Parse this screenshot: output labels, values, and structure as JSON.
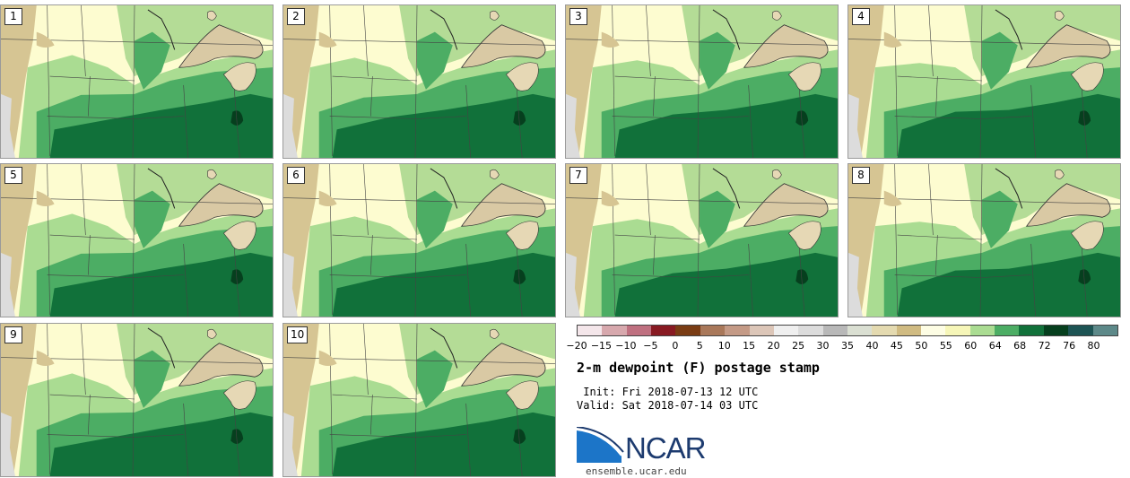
{
  "panels": [
    {
      "label": "1"
    },
    {
      "label": "2"
    },
    {
      "label": "3"
    },
    {
      "label": "4"
    },
    {
      "label": "5"
    },
    {
      "label": "6"
    },
    {
      "label": "7"
    },
    {
      "label": "8"
    },
    {
      "label": "9"
    },
    {
      "label": "10"
    }
  ],
  "colorbar": {
    "colors": [
      "#f4e6ea",
      "#d7a8ad",
      "#bf7080",
      "#881a22",
      "#7a3c14",
      "#a9785a",
      "#c49a86",
      "#dcc6b8",
      "#efefef",
      "#dcdcdc",
      "#b8b8b8",
      "#dadfd2",
      "#e4dab0",
      "#d0bb82",
      "#fdfde4",
      "#f6f6b8",
      "#aadc92",
      "#4cad64",
      "#11713a",
      "#063f1e",
      "#1d5454",
      "#5d8989"
    ],
    "ticks": [
      "-20",
      "-15",
      "-10",
      "-5",
      "0",
      "5",
      "10",
      "15",
      "20",
      "25",
      "30",
      "35",
      "40",
      "45",
      "50",
      "55",
      "60",
      "64",
      "68",
      "72",
      "76",
      "80"
    ]
  },
  "title": "2-m dewpoint (F) postage stamp",
  "init": " Init: Fri 2018-07-13 12 UTC",
  "valid": "Valid: Sat 2018-07-14 03 UTC",
  "logo": {
    "text": "NCAR",
    "site": "ensemble.ucar.edu",
    "color": "#1d3b6f",
    "accent": "#1c75c8"
  }
}
